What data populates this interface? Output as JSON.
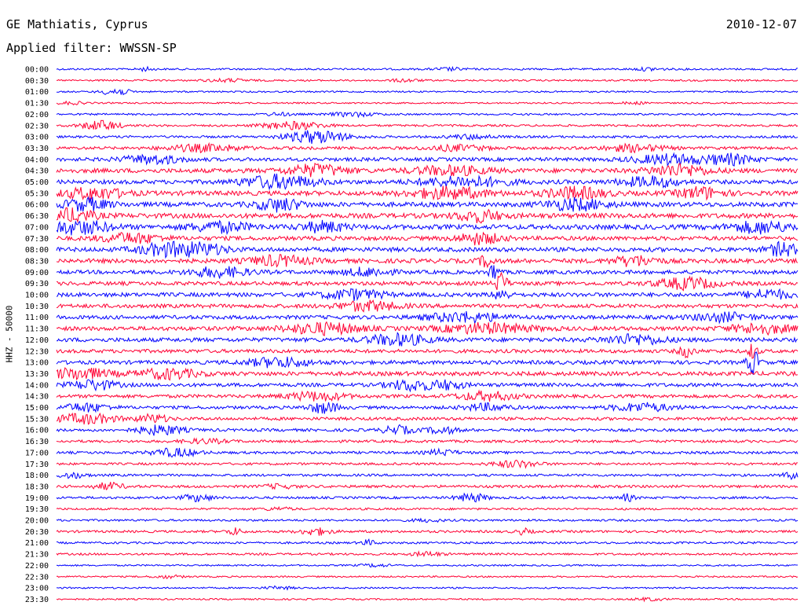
{
  "header": {
    "station": "GE Mathiatis, Cyprus",
    "date": "2010-12-07",
    "filter": "Applied filter: WWSSN-SP"
  },
  "chart_data": {
    "type": "line",
    "title": "GE Mathiatis, Cyprus",
    "subtitle": "Applied filter: WWSSN-SP",
    "date": "2010-12-07",
    "ylabel": "HHZ - 50000",
    "xlabel": "",
    "grid": false,
    "trace_colors": [
      "#0000ff",
      "#ff0033"
    ],
    "rows": [
      {
        "label": "00:00",
        "activity": 0.15,
        "events": [
          {
            "x": 0.12,
            "a": 0.25,
            "w": 0.01
          },
          {
            "x": 0.53,
            "a": 0.2,
            "w": 0.02
          },
          {
            "x": 0.8,
            "a": 0.2,
            "w": 0.02
          }
        ]
      },
      {
        "label": "00:30",
        "activity": 0.12,
        "events": [
          {
            "x": 0.23,
            "a": 0.2,
            "w": 0.03
          },
          {
            "x": 0.47,
            "a": 0.2,
            "w": 0.02
          }
        ]
      },
      {
        "label": "01:00",
        "activity": 0.1,
        "events": [
          {
            "x": 0.08,
            "a": 0.3,
            "w": 0.02
          },
          {
            "x": 0.08,
            "a": 0.3,
            "w": 0.015
          }
        ]
      },
      {
        "label": "01:30",
        "activity": 0.08,
        "events": [
          {
            "x": 0.02,
            "a": 0.2,
            "w": 0.02
          },
          {
            "x": 0.78,
            "a": 0.15,
            "w": 0.02
          }
        ]
      },
      {
        "label": "02:00",
        "activity": 0.15,
        "events": [
          {
            "x": 0.4,
            "a": 0.3,
            "w": 0.03
          },
          {
            "x": 0.3,
            "a": 0.2,
            "w": 0.02
          }
        ]
      },
      {
        "label": "02:30",
        "activity": 0.2,
        "events": [
          {
            "x": 0.06,
            "a": 0.7,
            "w": 0.025
          },
          {
            "x": 0.32,
            "a": 0.55,
            "w": 0.04
          }
        ]
      },
      {
        "label": "03:00",
        "activity": 0.25,
        "events": [
          {
            "x": 0.35,
            "a": 0.95,
            "w": 0.04
          },
          {
            "x": 0.56,
            "a": 0.3,
            "w": 0.03
          }
        ]
      },
      {
        "label": "03:30",
        "activity": 0.35,
        "events": [
          {
            "x": 0.2,
            "a": 0.5,
            "w": 0.05
          },
          {
            "x": 0.54,
            "a": 0.4,
            "w": 0.04
          },
          {
            "x": 0.78,
            "a": 0.5,
            "w": 0.04
          }
        ]
      },
      {
        "label": "04:00",
        "activity": 0.5,
        "events": [
          {
            "x": 0.13,
            "a": 0.6,
            "w": 0.04
          },
          {
            "x": 0.83,
            "a": 0.7,
            "w": 0.05
          },
          {
            "x": 0.91,
            "a": 0.7,
            "w": 0.03
          }
        ]
      },
      {
        "label": "04:30",
        "activity": 0.65,
        "events": [
          {
            "x": 0.35,
            "a": 0.8,
            "w": 0.04
          },
          {
            "x": 0.53,
            "a": 0.6,
            "w": 0.05
          },
          {
            "x": 0.84,
            "a": 0.8,
            "w": 0.04
          }
        ]
      },
      {
        "label": "05:00",
        "activity": 0.6,
        "events": [
          {
            "x": 0.3,
            "a": 0.95,
            "w": 0.05
          },
          {
            "x": 0.55,
            "a": 0.7,
            "w": 0.06
          },
          {
            "x": 0.8,
            "a": 0.7,
            "w": 0.04
          }
        ]
      },
      {
        "label": "05:30",
        "activity": 0.7,
        "events": [
          {
            "x": 0.05,
            "a": 0.8,
            "w": 0.04
          },
          {
            "x": 0.53,
            "a": 0.8,
            "w": 0.05
          },
          {
            "x": 0.7,
            "a": 0.8,
            "w": 0.04
          },
          {
            "x": 0.87,
            "a": 0.8,
            "w": 0.03
          }
        ]
      },
      {
        "label": "06:00",
        "activity": 0.7,
        "events": [
          {
            "x": 0.04,
            "a": 0.85,
            "w": 0.03
          },
          {
            "x": 0.3,
            "a": 0.9,
            "w": 0.03
          },
          {
            "x": 0.7,
            "a": 0.8,
            "w": 0.04
          }
        ]
      },
      {
        "label": "06:30",
        "activity": 0.75,
        "events": [
          {
            "x": 0.02,
            "a": 0.9,
            "w": 0.03
          },
          {
            "x": 0.57,
            "a": 0.8,
            "w": 0.03
          }
        ]
      },
      {
        "label": "07:00",
        "activity": 0.75,
        "events": [
          {
            "x": 0.03,
            "a": 0.95,
            "w": 0.04
          },
          {
            "x": 0.22,
            "a": 0.7,
            "w": 0.04
          },
          {
            "x": 0.36,
            "a": 0.7,
            "w": 0.03
          },
          {
            "x": 0.95,
            "a": 0.8,
            "w": 0.04
          }
        ]
      },
      {
        "label": "07:30",
        "activity": 0.6,
        "events": [
          {
            "x": 0.1,
            "a": 0.7,
            "w": 0.04
          },
          {
            "x": 0.57,
            "a": 0.8,
            "w": 0.03
          }
        ]
      },
      {
        "label": "08:00",
        "activity": 0.65,
        "events": [
          {
            "x": 0.15,
            "a": 0.9,
            "w": 0.04
          },
          {
            "x": 0.2,
            "a": 0.7,
            "w": 0.03
          },
          {
            "x": 0.98,
            "a": 0.95,
            "w": 0.02
          }
        ]
      },
      {
        "label": "08:30",
        "activity": 0.65,
        "events": [
          {
            "x": 0.3,
            "a": 0.7,
            "w": 0.04
          },
          {
            "x": 0.58,
            "a": 0.8,
            "w": 0.01
          },
          {
            "x": 0.78,
            "a": 0.7,
            "w": 0.03
          }
        ]
      },
      {
        "label": "09:00",
        "activity": 0.55,
        "events": [
          {
            "x": 0.22,
            "a": 0.7,
            "w": 0.04
          },
          {
            "x": 0.42,
            "a": 0.6,
            "w": 0.03
          },
          {
            "x": 0.59,
            "a": 1.4,
            "w": 0.006
          }
        ]
      },
      {
        "label": "09:30",
        "activity": 0.55,
        "events": [
          {
            "x": 0.6,
            "a": 1.6,
            "w": 0.008
          },
          {
            "x": 0.85,
            "a": 0.8,
            "w": 0.04
          }
        ]
      },
      {
        "label": "10:00",
        "activity": 0.6,
        "events": [
          {
            "x": 0.4,
            "a": 0.7,
            "w": 0.04
          },
          {
            "x": 0.6,
            "a": 0.9,
            "w": 0.01
          },
          {
            "x": 0.96,
            "a": 0.7,
            "w": 0.03
          }
        ]
      },
      {
        "label": "10:30",
        "activity": 0.55,
        "events": [
          {
            "x": 0.42,
            "a": 0.7,
            "w": 0.04
          }
        ]
      },
      {
        "label": "11:00",
        "activity": 0.55,
        "events": [
          {
            "x": 0.55,
            "a": 0.7,
            "w": 0.05
          },
          {
            "x": 0.9,
            "a": 0.6,
            "w": 0.04
          }
        ]
      },
      {
        "label": "11:30",
        "activity": 0.6,
        "events": [
          {
            "x": 0.36,
            "a": 0.8,
            "w": 0.05
          },
          {
            "x": 0.58,
            "a": 0.7,
            "w": 0.06
          },
          {
            "x": 0.95,
            "a": 0.7,
            "w": 0.04
          }
        ]
      },
      {
        "label": "12:00",
        "activity": 0.6,
        "events": [
          {
            "x": 0.46,
            "a": 0.8,
            "w": 0.04
          },
          {
            "x": 0.78,
            "a": 0.7,
            "w": 0.04
          }
        ]
      },
      {
        "label": "12:30",
        "activity": 0.5,
        "events": [
          {
            "x": 0.85,
            "a": 0.8,
            "w": 0.01
          },
          {
            "x": 0.94,
            "a": 1.2,
            "w": 0.006
          }
        ]
      },
      {
        "label": "13:00",
        "activity": 0.55,
        "events": [
          {
            "x": 0.3,
            "a": 0.7,
            "w": 0.04
          },
          {
            "x": 0.94,
            "a": 1.8,
            "w": 0.008
          }
        ]
      },
      {
        "label": "13:30",
        "activity": 0.6,
        "events": [
          {
            "x": 0.03,
            "a": 0.8,
            "w": 0.04
          },
          {
            "x": 0.15,
            "a": 0.7,
            "w": 0.04
          }
        ]
      },
      {
        "label": "14:00",
        "activity": 0.5,
        "events": [
          {
            "x": 0.05,
            "a": 0.7,
            "w": 0.03
          },
          {
            "x": 0.48,
            "a": 0.8,
            "w": 0.03
          },
          {
            "x": 0.53,
            "a": 0.6,
            "w": 0.02
          }
        ]
      },
      {
        "label": "14:30",
        "activity": 0.45,
        "events": [
          {
            "x": 0.35,
            "a": 0.6,
            "w": 0.04
          },
          {
            "x": 0.58,
            "a": 0.6,
            "w": 0.04
          }
        ]
      },
      {
        "label": "15:00",
        "activity": 0.4,
        "events": [
          {
            "x": 0.04,
            "a": 0.6,
            "w": 0.03
          },
          {
            "x": 0.36,
            "a": 0.8,
            "w": 0.02
          },
          {
            "x": 0.58,
            "a": 0.5,
            "w": 0.03
          },
          {
            "x": 0.79,
            "a": 0.6,
            "w": 0.04
          }
        ]
      },
      {
        "label": "15:30",
        "activity": 0.4,
        "events": [
          {
            "x": 0.04,
            "a": 0.7,
            "w": 0.04
          },
          {
            "x": 0.13,
            "a": 0.6,
            "w": 0.02
          }
        ]
      },
      {
        "label": "16:00",
        "activity": 0.35,
        "events": [
          {
            "x": 0.14,
            "a": 0.7,
            "w": 0.03
          },
          {
            "x": 0.46,
            "a": 0.6,
            "w": 0.02
          },
          {
            "x": 0.52,
            "a": 0.5,
            "w": 0.02
          }
        ]
      },
      {
        "label": "16:30",
        "activity": 0.3,
        "events": [
          {
            "x": 0.2,
            "a": 0.3,
            "w": 0.03
          }
        ]
      },
      {
        "label": "17:00",
        "activity": 0.3,
        "events": [
          {
            "x": 0.16,
            "a": 0.6,
            "w": 0.03
          },
          {
            "x": 0.52,
            "a": 0.4,
            "w": 0.02
          }
        ]
      },
      {
        "label": "17:30",
        "activity": 0.25,
        "events": [
          {
            "x": 0.62,
            "a": 0.5,
            "w": 0.03
          }
        ]
      },
      {
        "label": "18:00",
        "activity": 0.25,
        "events": [
          {
            "x": 0.02,
            "a": 0.4,
            "w": 0.02
          },
          {
            "x": 0.99,
            "a": 0.5,
            "w": 0.01
          }
        ]
      },
      {
        "label": "18:30",
        "activity": 0.3,
        "events": [
          {
            "x": 0.07,
            "a": 0.5,
            "w": 0.02
          },
          {
            "x": 0.3,
            "a": 0.3,
            "w": 0.02
          }
        ]
      },
      {
        "label": "19:00",
        "activity": 0.25,
        "events": [
          {
            "x": 0.19,
            "a": 0.5,
            "w": 0.02
          },
          {
            "x": 0.56,
            "a": 0.6,
            "w": 0.02
          },
          {
            "x": 0.77,
            "a": 0.5,
            "w": 0.01
          }
        ]
      },
      {
        "label": "19:30",
        "activity": 0.2,
        "events": [
          {
            "x": 0.3,
            "a": 0.2,
            "w": 0.02
          }
        ]
      },
      {
        "label": "20:00",
        "activity": 0.2,
        "events": [
          {
            "x": 0.5,
            "a": 0.2,
            "w": 0.02
          }
        ]
      },
      {
        "label": "20:30",
        "activity": 0.25,
        "events": [
          {
            "x": 0.24,
            "a": 0.5,
            "w": 0.01
          },
          {
            "x": 0.35,
            "a": 0.5,
            "w": 0.02
          },
          {
            "x": 0.63,
            "a": 0.4,
            "w": 0.01
          }
        ]
      },
      {
        "label": "21:00",
        "activity": 0.2,
        "events": [
          {
            "x": 0.42,
            "a": 0.4,
            "w": 0.01
          }
        ]
      },
      {
        "label": "21:30",
        "activity": 0.2,
        "events": [
          {
            "x": 0.5,
            "a": 0.3,
            "w": 0.02
          }
        ]
      },
      {
        "label": "22:00",
        "activity": 0.1,
        "events": [
          {
            "x": 0.43,
            "a": 0.2,
            "w": 0.02
          }
        ]
      },
      {
        "label": "22:30",
        "activity": 0.1,
        "events": [
          {
            "x": 0.15,
            "a": 0.2,
            "w": 0.02
          }
        ]
      },
      {
        "label": "23:00",
        "activity": 0.1,
        "events": [
          {
            "x": 0.3,
            "a": 0.2,
            "w": 0.02
          }
        ]
      },
      {
        "label": "23:30",
        "activity": 0.1,
        "events": [
          {
            "x": 0.8,
            "a": 0.2,
            "w": 0.02
          }
        ]
      }
    ]
  }
}
